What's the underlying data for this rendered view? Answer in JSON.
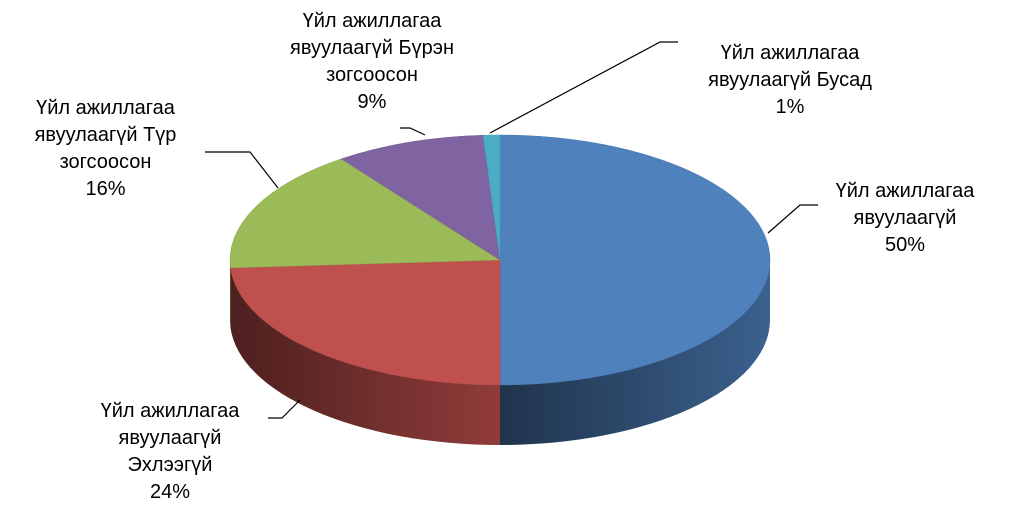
{
  "chart_data": {
    "type": "pie3d",
    "categories": [
      "Үйл ажиллагаа явуулаагүй",
      "Үйл ажиллагаа явуулаагүй Эхлээгүй",
      "Үйл ажиллагаа явуулаагүй Түр зогсоосон",
      "Үйл ажиллагаа явуулаагүй Бүрэн зогсоосон",
      "Үйл ажиллагаа явуулаагүй Бусад"
    ],
    "values": [
      50,
      24,
      16,
      9,
      1
    ],
    "value_labels": [
      "50%",
      "24%",
      "16%",
      "9%",
      "1%"
    ],
    "colors": [
      "#4f81bd",
      "#c0504d",
      "#9bbb59",
      "#8064a2",
      "#4bacc6"
    ]
  }
}
